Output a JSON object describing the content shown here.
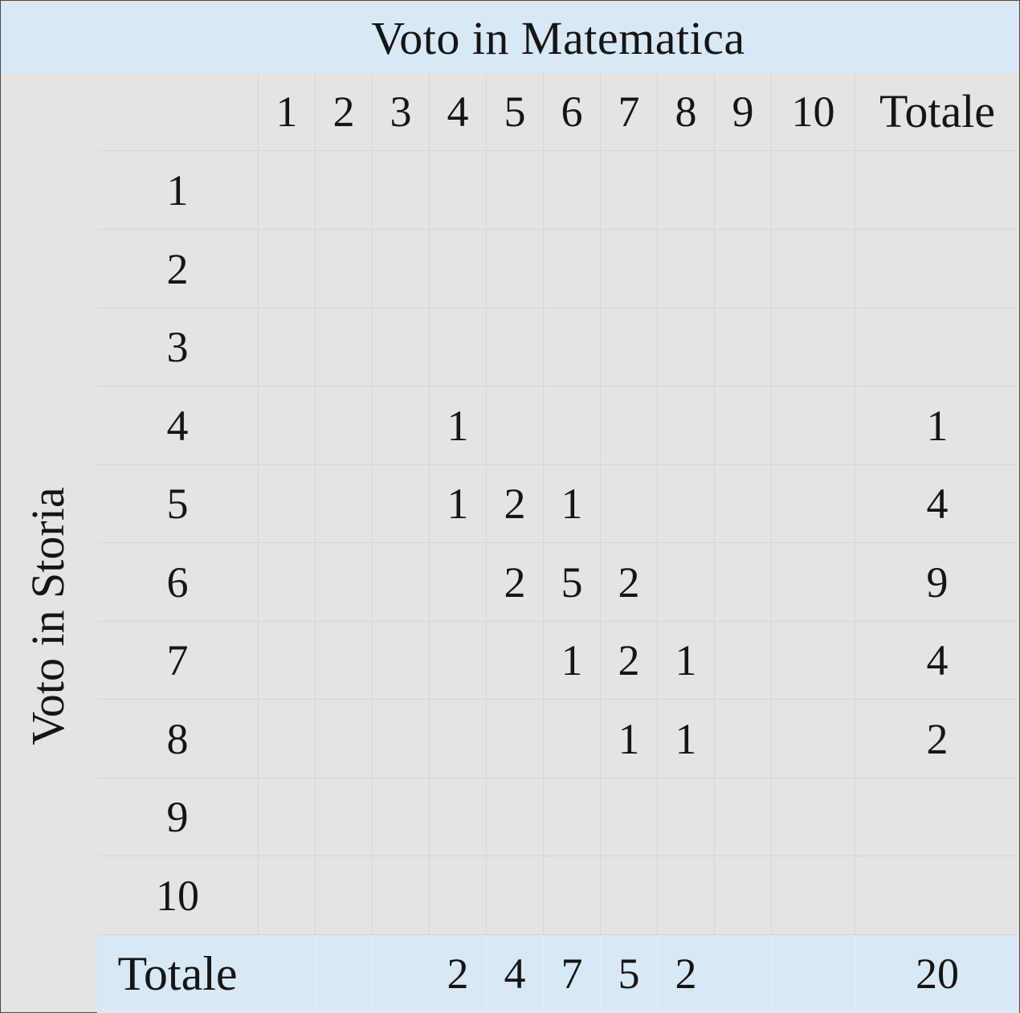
{
  "header": {
    "column_title": "Voto in Matematica",
    "row_title": "Voto in Storia"
  },
  "table": {
    "column_headers": [
      "",
      "1",
      "2",
      "3",
      "4",
      "5",
      "6",
      "7",
      "8",
      "9",
      "10",
      "Totale"
    ],
    "rows": [
      [
        "1",
        "",
        "",
        "",
        "",
        "",
        "",
        "",
        "",
        "",
        "",
        ""
      ],
      [
        "2",
        "",
        "",
        "",
        "",
        "",
        "",
        "",
        "",
        "",
        "",
        ""
      ],
      [
        "3",
        "",
        "",
        "",
        "",
        "",
        "",
        "",
        "",
        "",
        "",
        ""
      ],
      [
        "4",
        "",
        "",
        "",
        "1",
        "",
        "",
        "",
        "",
        "",
        "",
        "1"
      ],
      [
        "5",
        "",
        "",
        "",
        "1",
        "2",
        "1",
        "",
        "",
        "",
        "",
        "4"
      ],
      [
        "6",
        "",
        "",
        "",
        "",
        "2",
        "5",
        "2",
        "",
        "",
        "",
        "9"
      ],
      [
        "7",
        "",
        "",
        "",
        "",
        "",
        "1",
        "2",
        "1",
        "",
        "",
        "4"
      ],
      [
        "8",
        "",
        "",
        "",
        "",
        "",
        "",
        "1",
        "1",
        "",
        "",
        "2"
      ],
      [
        "9",
        "",
        "",
        "",
        "",
        "",
        "",
        "",
        "",
        "",
        "",
        ""
      ],
      [
        "10",
        "",
        "",
        "",
        "",
        "",
        "",
        "",
        "",
        "",
        "",
        ""
      ]
    ],
    "totals_row": [
      "Totale",
      "",
      "",
      "",
      "2",
      "4",
      "7",
      "5",
      "2",
      "",
      "",
      "20"
    ]
  },
  "colors": {
    "background": "#e4e4e4",
    "header_band": "#d9e8f5",
    "grid_line": "#d6d6d6",
    "text": "#151515"
  }
}
